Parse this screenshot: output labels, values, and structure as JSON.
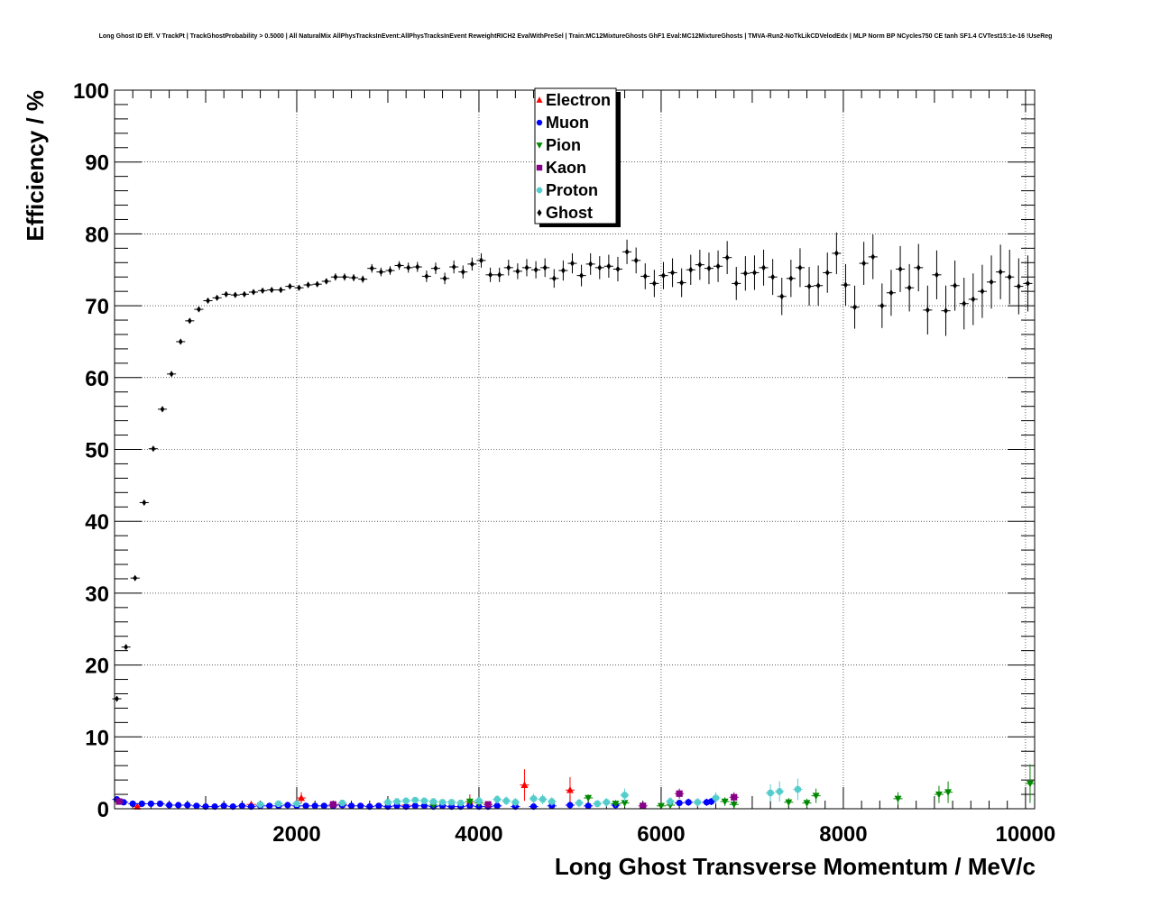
{
  "chart_data": {
    "type": "scatter",
    "title": "Long Ghost ID Eff. V TrackPt | TrackGhostProbability > 0.5000 | All NaturalMix AllPhysTracksInEvent:AllPhysTracksInEvent ReweightRICH2 EvalWithPreSel | Train:MC12MixtureGhosts GhF1 Eval:MC12MixtureGhosts | TMVA-Run2-NoTkLikCDVelodEdx | MLP Norm BP NCycles750 CE tanh SF1.4 CVTest15:1e-16 !UseReg",
    "xlabel": "Long Ghost Transverse Momentum / MeV/c",
    "ylabel": "Efficiency / %",
    "xlim": [
      0,
      10100
    ],
    "ylim": [
      0,
      100
    ],
    "x_ticks": [
      2000,
      4000,
      6000,
      8000,
      10000
    ],
    "y_ticks": [
      0,
      10,
      20,
      30,
      40,
      50,
      60,
      70,
      80,
      90,
      100
    ],
    "grid": true,
    "legend_position": "top-center",
    "series": [
      {
        "name": "Electron",
        "color": "#ff0000",
        "marker": "triangle-up",
        "points": [
          [
            250,
            0.3,
            0.3
          ],
          [
            1500,
            0.6,
            0.4
          ],
          [
            2050,
            1.5,
            0.8
          ],
          [
            2500,
            0.6,
            0.3
          ],
          [
            3200,
            0.5,
            0.3
          ],
          [
            3900,
            1.0,
            1.0
          ],
          [
            4500,
            3.3,
            2.2
          ],
          [
            5000,
            2.6,
            1.8
          ]
        ]
      },
      {
        "name": "Muon",
        "color": "#0000ff",
        "marker": "circle",
        "points": [
          [
            25,
            1.3,
            0.3
          ],
          [
            100,
            0.9,
            0.2
          ],
          [
            200,
            0.7,
            0.2
          ],
          [
            300,
            0.7,
            0.2
          ],
          [
            400,
            0.7,
            0.2
          ],
          [
            500,
            0.7,
            0.2
          ],
          [
            600,
            0.5,
            0.2
          ],
          [
            700,
            0.5,
            0.2
          ],
          [
            800,
            0.5,
            0.2
          ],
          [
            900,
            0.4,
            0.2
          ],
          [
            1000,
            0.3,
            0.2
          ],
          [
            1100,
            0.3,
            0.2
          ],
          [
            1200,
            0.4,
            0.2
          ],
          [
            1300,
            0.3,
            0.2
          ],
          [
            1400,
            0.4,
            0.2
          ],
          [
            1500,
            0.3,
            0.2
          ],
          [
            1600,
            0.4,
            0.2
          ],
          [
            1700,
            0.4,
            0.2
          ],
          [
            1800,
            0.4,
            0.2
          ],
          [
            1900,
            0.5,
            0.2
          ],
          [
            2000,
            0.4,
            0.2
          ],
          [
            2100,
            0.4,
            0.2
          ],
          [
            2200,
            0.4,
            0.2
          ],
          [
            2300,
            0.4,
            0.2
          ],
          [
            2400,
            0.4,
            0.2
          ],
          [
            2500,
            0.5,
            0.2
          ],
          [
            2600,
            0.4,
            0.2
          ],
          [
            2700,
            0.4,
            0.2
          ],
          [
            2800,
            0.3,
            0.2
          ],
          [
            2900,
            0.4,
            0.2
          ],
          [
            3000,
            0.3,
            0.2
          ],
          [
            3100,
            0.4,
            0.2
          ],
          [
            3200,
            0.3,
            0.2
          ],
          [
            3300,
            0.4,
            0.2
          ],
          [
            3400,
            0.4,
            0.2
          ],
          [
            3500,
            0.3,
            0.2
          ],
          [
            3600,
            0.4,
            0.2
          ],
          [
            3700,
            0.3,
            0.2
          ],
          [
            3800,
            0.3,
            0.2
          ],
          [
            3900,
            0.4,
            0.2
          ],
          [
            4000,
            0.3,
            0.2
          ],
          [
            4100,
            0.3,
            0.2
          ],
          [
            4200,
            0.4,
            0.2
          ],
          [
            4400,
            0.3,
            0.2
          ],
          [
            4600,
            0.3,
            0.2
          ],
          [
            4800,
            0.4,
            0.2
          ],
          [
            5000,
            0.5,
            0.3
          ],
          [
            5200,
            0.4,
            0.3
          ],
          [
            5500,
            0.5,
            0.3
          ],
          [
            6200,
            0.8,
            0.4
          ],
          [
            6300,
            0.9,
            0.5
          ],
          [
            6500,
            0.9,
            0.5
          ],
          [
            6550,
            1.0,
            0.5
          ]
        ]
      },
      {
        "name": "Pion",
        "color": "#008800",
        "marker": "triangle-down",
        "points": [
          [
            3500,
            0.5,
            0.3
          ],
          [
            3900,
            1.0,
            0.6
          ],
          [
            4000,
            0.8,
            0.5
          ],
          [
            5200,
            1.5,
            0.5
          ],
          [
            5500,
            0.7,
            0.5
          ],
          [
            5600,
            0.8,
            0.5
          ],
          [
            6000,
            0.4,
            0.4
          ],
          [
            6100,
            0.5,
            0.4
          ],
          [
            6700,
            1.0,
            0.6
          ],
          [
            6800,
            0.6,
            0.5
          ],
          [
            7400,
            0.9,
            0.6
          ],
          [
            7600,
            0.8,
            0.6
          ],
          [
            7700,
            1.8,
            1.0
          ],
          [
            8600,
            1.4,
            0.9
          ],
          [
            9050,
            2.0,
            1.2
          ],
          [
            9150,
            2.3,
            1.5
          ],
          [
            10050,
            3.5,
            2.7
          ]
        ]
      },
      {
        "name": "Kaon",
        "color": "#880088",
        "marker": "square",
        "points": [
          [
            50,
            1.0,
            0.3
          ],
          [
            2400,
            0.6,
            0.3
          ],
          [
            4100,
            0.6,
            0.4
          ],
          [
            5800,
            0.4,
            0.3
          ],
          [
            6200,
            2.1,
            0.7
          ],
          [
            6800,
            1.6,
            0.7
          ]
        ]
      },
      {
        "name": "Proton",
        "color": "#55cccc",
        "marker": "cross",
        "points": [
          [
            1600,
            0.6,
            0.3
          ],
          [
            1800,
            0.7,
            0.3
          ],
          [
            2000,
            0.7,
            0.3
          ],
          [
            2500,
            0.8,
            0.3
          ],
          [
            3000,
            0.9,
            0.4
          ],
          [
            3100,
            1.0,
            0.4
          ],
          [
            3200,
            1.1,
            0.4
          ],
          [
            3300,
            1.2,
            0.4
          ],
          [
            3400,
            1.1,
            0.4
          ],
          [
            3500,
            1.0,
            0.4
          ],
          [
            3600,
            0.9,
            0.4
          ],
          [
            3700,
            0.9,
            0.4
          ],
          [
            3800,
            0.8,
            0.4
          ],
          [
            4000,
            1.1,
            0.5
          ],
          [
            4200,
            1.3,
            0.6
          ],
          [
            4300,
            1.1,
            0.6
          ],
          [
            4400,
            0.9,
            0.6
          ],
          [
            4600,
            1.4,
            0.7
          ],
          [
            4700,
            1.3,
            0.7
          ],
          [
            4800,
            1.0,
            0.6
          ],
          [
            5100,
            0.8,
            0.6
          ],
          [
            5300,
            0.7,
            0.5
          ],
          [
            5400,
            0.9,
            0.6
          ],
          [
            5600,
            1.9,
            0.9
          ],
          [
            6100,
            1.0,
            0.6
          ],
          [
            6400,
            0.9,
            0.6
          ],
          [
            6600,
            1.5,
            0.8
          ],
          [
            7200,
            2.2,
            1.2
          ],
          [
            7300,
            2.4,
            1.4
          ],
          [
            7500,
            2.7,
            1.5
          ]
        ]
      },
      {
        "name": "Ghost",
        "color": "#000000",
        "marker": "diamond",
        "points": [
          [
            25,
            15.3,
            0.3
          ],
          [
            125,
            22.5,
            0.3
          ],
          [
            225,
            32.1,
            0.3
          ],
          [
            325,
            42.6,
            0.3
          ],
          [
            425,
            50.1,
            0.3
          ],
          [
            525,
            55.6,
            0.3
          ],
          [
            625,
            60.5,
            0.3
          ],
          [
            725,
            65.0,
            0.3
          ],
          [
            825,
            67.9,
            0.3
          ],
          [
            925,
            69.5,
            0.3
          ],
          [
            1025,
            70.7,
            0.3
          ],
          [
            1125,
            71.1,
            0.3
          ],
          [
            1225,
            71.6,
            0.3
          ],
          [
            1325,
            71.5,
            0.3
          ],
          [
            1425,
            71.6,
            0.3
          ],
          [
            1525,
            71.9,
            0.3
          ],
          [
            1625,
            72.1,
            0.3
          ],
          [
            1725,
            72.2,
            0.3
          ],
          [
            1825,
            72.2,
            0.4
          ],
          [
            1925,
            72.7,
            0.4
          ],
          [
            2025,
            72.5,
            0.4
          ],
          [
            2125,
            72.9,
            0.4
          ],
          [
            2225,
            73.0,
            0.4
          ],
          [
            2325,
            73.4,
            0.4
          ],
          [
            2425,
            74.0,
            0.5
          ],
          [
            2525,
            74.0,
            0.5
          ],
          [
            2625,
            73.9,
            0.5
          ],
          [
            2725,
            73.7,
            0.5
          ],
          [
            2825,
            75.2,
            0.6
          ],
          [
            2925,
            74.7,
            0.6
          ],
          [
            3025,
            74.9,
            0.6
          ],
          [
            3125,
            75.6,
            0.6
          ],
          [
            3225,
            75.3,
            0.7
          ],
          [
            3325,
            75.4,
            0.7
          ],
          [
            3425,
            74.1,
            0.8
          ],
          [
            3525,
            75.2,
            0.8
          ],
          [
            3625,
            73.8,
            0.8
          ],
          [
            3725,
            75.4,
            0.9
          ],
          [
            3825,
            74.7,
            0.9
          ],
          [
            3925,
            75.8,
            0.9
          ],
          [
            4025,
            76.3,
            1.0
          ],
          [
            4125,
            74.3,
            1.0
          ],
          [
            4225,
            74.3,
            1.0
          ],
          [
            4325,
            75.3,
            1.1
          ],
          [
            4425,
            74.8,
            1.1
          ],
          [
            4525,
            75.3,
            1.2
          ],
          [
            4625,
            75.0,
            1.2
          ],
          [
            4725,
            75.3,
            1.3
          ],
          [
            4825,
            73.8,
            1.3
          ],
          [
            4925,
            74.9,
            1.4
          ],
          [
            5025,
            75.9,
            1.4
          ],
          [
            5125,
            74.2,
            1.5
          ],
          [
            5225,
            75.8,
            1.5
          ],
          [
            5325,
            75.3,
            1.6
          ],
          [
            5425,
            75.5,
            1.6
          ],
          [
            5525,
            75.1,
            1.7
          ],
          [
            5625,
            77.5,
            1.7
          ],
          [
            5725,
            76.3,
            1.8
          ],
          [
            5825,
            74.1,
            1.8
          ],
          [
            5925,
            73.1,
            1.9
          ],
          [
            6025,
            74.2,
            1.9
          ],
          [
            6125,
            74.6,
            2.0
          ],
          [
            6225,
            73.2,
            2.0
          ],
          [
            6325,
            75.0,
            2.1
          ],
          [
            6425,
            75.7,
            2.1
          ],
          [
            6525,
            75.2,
            2.2
          ],
          [
            6625,
            75.5,
            2.2
          ],
          [
            6725,
            76.7,
            2.3
          ],
          [
            6825,
            73.1,
            2.3
          ],
          [
            6925,
            74.5,
            2.4
          ],
          [
            7025,
            74.6,
            2.4
          ],
          [
            7125,
            75.3,
            2.5
          ],
          [
            7225,
            74.0,
            2.5
          ],
          [
            7325,
            71.3,
            2.6
          ],
          [
            7425,
            73.8,
            2.6
          ],
          [
            7525,
            75.3,
            2.7
          ],
          [
            7625,
            72.7,
            2.7
          ],
          [
            7725,
            72.8,
            2.8
          ],
          [
            7825,
            74.6,
            2.8
          ],
          [
            7925,
            77.3,
            2.9
          ],
          [
            8025,
            72.9,
            2.9
          ],
          [
            8125,
            69.8,
            3.0
          ],
          [
            8225,
            75.9,
            3.0
          ],
          [
            8325,
            76.8,
            3.1
          ],
          [
            8425,
            70.0,
            3.1
          ],
          [
            8525,
            71.8,
            3.2
          ],
          [
            8625,
            75.1,
            3.2
          ],
          [
            8725,
            72.5,
            3.3
          ],
          [
            8825,
            75.3,
            3.3
          ],
          [
            8925,
            69.4,
            3.4
          ],
          [
            9025,
            74.3,
            3.4
          ],
          [
            9125,
            69.3,
            3.5
          ],
          [
            9225,
            72.8,
            3.5
          ],
          [
            9325,
            70.3,
            3.6
          ],
          [
            9425,
            70.9,
            3.6
          ],
          [
            9525,
            72.0,
            3.7
          ],
          [
            9625,
            73.3,
            3.7
          ],
          [
            9725,
            74.7,
            3.8
          ],
          [
            9825,
            74.0,
            3.8
          ],
          [
            9925,
            72.7,
            3.9
          ],
          [
            10025,
            73.1,
            3.9
          ]
        ]
      }
    ]
  }
}
